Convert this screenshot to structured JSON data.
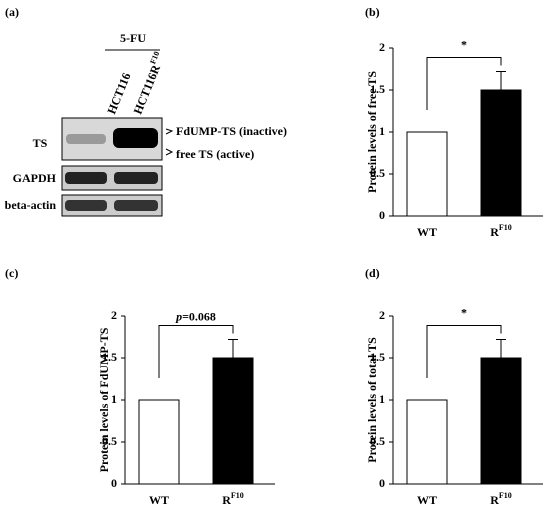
{
  "blot": {
    "panel": "(a)",
    "treatment": "5-FU",
    "lanes": [
      {
        "text": "HCT116"
      },
      {
        "text": "HCT116R",
        "sup": "F10"
      }
    ],
    "rows": [
      "TS",
      "GAPDH",
      "beta-actin"
    ],
    "band_labels": [
      "FdUMP-TS (inactive)",
      "free TS (active)"
    ]
  },
  "chart_data": [
    {
      "type": "bar",
      "panel": "(b)",
      "ylabel": "Protein levels of free TS",
      "categories": [
        "WT",
        "R"
      ],
      "category_sup": [
        null,
        "F10"
      ],
      "values": [
        1,
        1.5
      ],
      "errors": [
        null,
        0.22
      ],
      "colors": [
        "#ffffff",
        "#000000"
      ],
      "ylim": [
        0,
        2
      ],
      "yticks": [
        0,
        0.5,
        1,
        1.5,
        2
      ],
      "annotation": {
        "text": "*"
      }
    },
    {
      "type": "bar",
      "panel": "(c)",
      "ylabel": "Protein levels of FdUMP-TS",
      "categories": [
        "WT",
        "R"
      ],
      "category_sup": [
        null,
        "F10"
      ],
      "values": [
        1,
        1.5
      ],
      "errors": [
        null,
        0.22
      ],
      "colors": [
        "#ffffff",
        "#000000"
      ],
      "ylim": [
        0,
        2
      ],
      "yticks": [
        0,
        0.5,
        1,
        1.5,
        2
      ],
      "annotation": {
        "italic": "p",
        "text": "=0.068"
      }
    },
    {
      "type": "bar",
      "panel": "(d)",
      "ylabel": "Protein levels of  total TS",
      "categories": [
        "WT",
        "R"
      ],
      "category_sup": [
        null,
        "F10"
      ],
      "values": [
        1,
        1.5
      ],
      "errors": [
        null,
        0.22
      ],
      "colors": [
        "#ffffff",
        "#000000"
      ],
      "ylim": [
        0,
        2
      ],
      "yticks": [
        0,
        0.5,
        1,
        1.5,
        2
      ],
      "annotation": {
        "text": "*"
      }
    }
  ]
}
